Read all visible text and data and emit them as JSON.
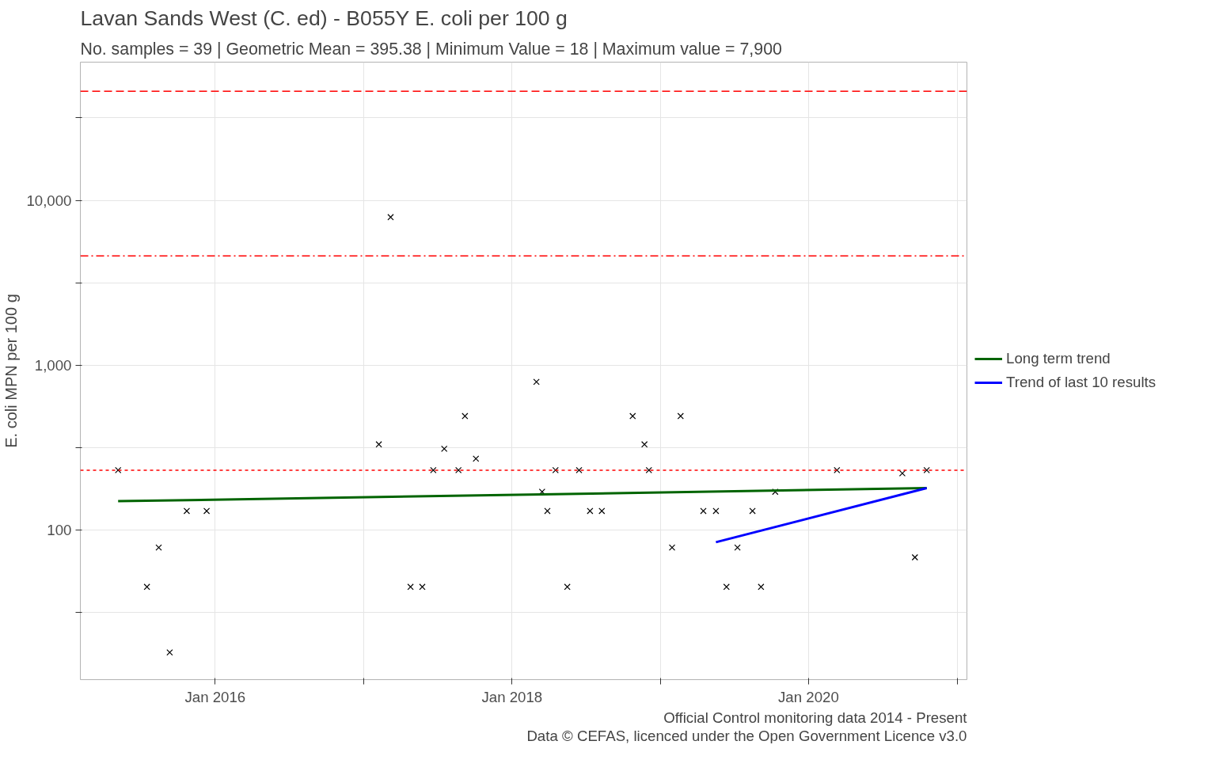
{
  "chart_data": {
    "type": "scatter",
    "title": "Lavan Sands West (C. ed) - B055Y E. coli per 100 g",
    "subtitle": "No. samples = 39 | Geometric Mean = 395.38 | Minimum Value = 18 | Maximum value = 7,900",
    "ylabel": "E. coli MPN per 100 g",
    "annotations": [
      "Official Control monitoring data 2014 - Present",
      "Data © CEFAS, licenced under the Open Government Licence v3.0"
    ],
    "x": [
      "2015-05-07",
      "2015-07-17",
      "2015-08-15",
      "2015-09-11",
      "2015-10-23",
      "2015-12-11",
      "2017-02-07",
      "2017-03-08",
      "2017-04-26",
      "2017-05-25",
      "2017-06-21",
      "2017-07-18",
      "2017-08-22",
      "2017-09-07",
      "2017-10-04",
      "2018-03-02",
      "2018-03-16",
      "2018-03-29",
      "2018-04-18",
      "2018-05-17",
      "2018-06-15",
      "2018-07-12",
      "2018-08-10",
      "2018-10-25",
      "2018-11-23",
      "2018-12-04",
      "2019-01-30",
      "2019-02-20",
      "2019-04-17",
      "2019-05-18",
      "2019-06-13",
      "2019-07-10",
      "2019-08-16",
      "2019-09-06",
      "2019-10-11",
      "2020-03-11",
      "2020-08-19",
      "2020-09-19",
      "2020-10-18"
    ],
    "series": [
      {
        "color": "#000000",
        "marker": "cross",
        "values": [
          230,
          45,
          78,
          18,
          130,
          130,
          330,
          7900,
          45,
          45,
          230,
          310,
          230,
          490,
          270,
          790,
          170,
          130,
          230,
          45,
          230,
          130,
          130,
          490,
          330,
          230,
          78,
          490,
          130,
          130,
          45,
          78,
          130,
          45,
          170,
          230,
          220,
          68,
          230
        ]
      },
      {
        "type": "line",
        "name": "Long term trend",
        "color": "#006400",
        "x": [
          "2015-05-07",
          "2020-10-18"
        ],
        "values": [
          149,
          179
        ]
      },
      {
        "type": "line",
        "name": "Trend of last 10 results",
        "color": "#0000ff",
        "x": [
          "2019-05-18",
          "2020-10-18"
        ],
        "values": [
          84,
          179
        ]
      }
    ],
    "xlim": [
      "2015-02-03",
      "2021-01-25"
    ],
    "xticks": [
      {
        "value": "2016-01-01",
        "label": "Jan 2016"
      },
      {
        "value": "2017-01-01",
        "label": null
      },
      {
        "value": "2018-01-01",
        "label": "Jan 2018"
      },
      {
        "value": "2019-01-01",
        "label": null
      },
      {
        "value": "2020-01-01",
        "label": "Jan 2020"
      },
      {
        "value": "2021-01-01",
        "label": null
      }
    ],
    "ylim": [
      12.3,
      69000
    ],
    "yticks": [
      {
        "value": 31.6,
        "label": null
      },
      {
        "value": 100,
        "label": "100"
      },
      {
        "value": 316,
        "label": null
      },
      {
        "value": 1000,
        "label": "1,000"
      },
      {
        "value": 3162,
        "label": null
      },
      {
        "value": 10000,
        "label": "10,000"
      },
      {
        "value": 31623,
        "label": null
      }
    ],
    "log": "y",
    "grid": true,
    "legend": "right",
    "ref_lines": [
      {
        "axis": "y",
        "value": 46000,
        "color": "#ff0000",
        "line_style": "dashed"
      },
      {
        "axis": "y",
        "value": 4600,
        "color": "#ff0000",
        "line_style": "dashdot"
      },
      {
        "axis": "y",
        "value": 230,
        "color": "#ff0000",
        "line_style": "dotted"
      }
    ]
  }
}
